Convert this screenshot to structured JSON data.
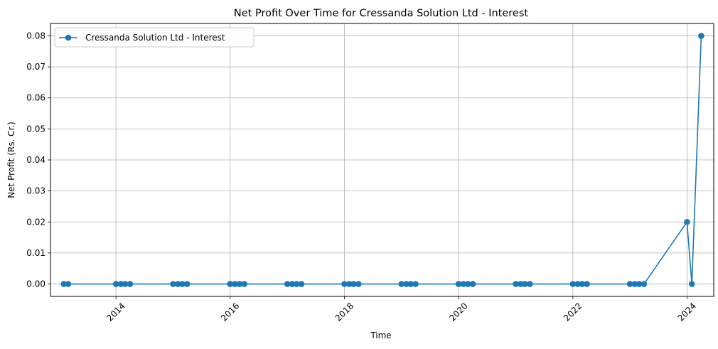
{
  "chart_data": {
    "type": "line",
    "title": "Net Profit Over Time for Cressanda Solution Ltd - Interest",
    "xlabel": "Time",
    "ylabel": "Net Profit (Rs. Cr.)",
    "x_ticks": [
      "2014",
      "2016",
      "2018",
      "2020",
      "2022",
      "2024"
    ],
    "y_ticks": [
      "0.00",
      "0.01",
      "0.02",
      "0.03",
      "0.04",
      "0.05",
      "0.06",
      "0.07",
      "0.08"
    ],
    "xlim": [
      "2012-11-08",
      "2024-06-20"
    ],
    "ylim": [
      -0.004,
      0.084
    ],
    "grid": true,
    "legend_position": "top-left",
    "series": [
      {
        "name": "Cressanda Solution Ltd - Interest",
        "color": "#1f77b4",
        "marker": "circle",
        "x": [
          "2013-02-01",
          "2013-03-01",
          "2014-01-01",
          "2014-02-01",
          "2014-03-01",
          "2014-04-01",
          "2015-01-01",
          "2015-02-01",
          "2015-03-01",
          "2015-04-01",
          "2016-01-01",
          "2016-02-01",
          "2016-03-01",
          "2016-04-01",
          "2017-01-01",
          "2017-02-01",
          "2017-03-01",
          "2017-04-01",
          "2018-01-01",
          "2018-02-01",
          "2018-03-01",
          "2018-04-01",
          "2019-01-01",
          "2019-02-01",
          "2019-03-01",
          "2019-04-01",
          "2020-01-01",
          "2020-02-01",
          "2020-03-01",
          "2020-04-01",
          "2021-01-01",
          "2021-02-01",
          "2021-03-01",
          "2021-04-01",
          "2022-01-01",
          "2022-02-01",
          "2022-03-01",
          "2022-04-01",
          "2023-01-01",
          "2023-02-01",
          "2023-03-01",
          "2023-04-01",
          "2024-01-01",
          "2024-02-01",
          "2024-04-01"
        ],
        "y": [
          0,
          0,
          0,
          0,
          0,
          0,
          0,
          0,
          0,
          0,
          0,
          0,
          0,
          0,
          0,
          0,
          0,
          0,
          0,
          0,
          0,
          0,
          0,
          0,
          0,
          0,
          0,
          0,
          0,
          0,
          0,
          0,
          0,
          0,
          0,
          0,
          0,
          0,
          0,
          0,
          0,
          0,
          0.02,
          0,
          0.08
        ]
      }
    ]
  }
}
